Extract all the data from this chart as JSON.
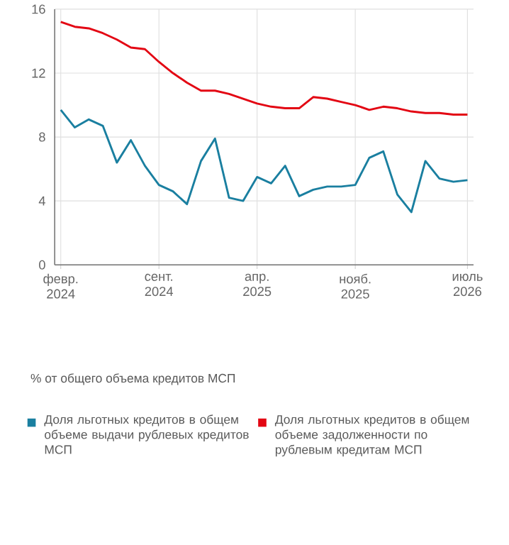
{
  "chart_data": {
    "type": "line",
    "x": [
      "2024-02",
      "2024-03",
      "2024-04",
      "2024-05",
      "2024-06",
      "2024-07",
      "2024-08",
      "2024-09",
      "2024-10",
      "2024-11",
      "2024-12",
      "2025-01",
      "2025-02",
      "2025-03",
      "2025-04",
      "2025-05",
      "2025-06",
      "2025-07",
      "2025-08",
      "2025-09",
      "2025-10",
      "2025-11",
      "2025-12",
      "2026-01",
      "2026-02",
      "2026-03",
      "2026-04",
      "2026-05",
      "2026-06",
      "2026-07"
    ],
    "series": [
      {
        "name": "Доля льготных кредитов в общем объеме выдачи рублевых кредитов МСП",
        "color": "#1a7fa0",
        "values": [
          9.7,
          8.6,
          9.1,
          8.7,
          6.4,
          7.8,
          6.2,
          5.0,
          4.6,
          3.8,
          6.5,
          7.9,
          4.2,
          4.0,
          5.5,
          5.1,
          6.2,
          4.3,
          4.7,
          4.9,
          4.9,
          5.0,
          6.7,
          7.1,
          4.4,
          3.3,
          6.5,
          5.4,
          5.2,
          5.3
        ]
      },
      {
        "name": "Доля льготных кредитов в общем объеме задолженности по рублевым кредитам МСП",
        "color": "#e30613",
        "values": [
          15.2,
          14.9,
          14.8,
          14.5,
          14.1,
          13.6,
          13.5,
          12.7,
          12.0,
          11.4,
          10.9,
          10.9,
          10.7,
          10.4,
          10.1,
          9.9,
          9.8,
          9.8,
          10.5,
          10.4,
          10.2,
          10.0,
          9.7,
          9.9,
          9.8,
          9.6,
          9.5,
          9.5,
          9.4,
          9.4
        ]
      }
    ],
    "xlim": [
      "2024-01-18",
      "2026-07-14"
    ],
    "xticks": [
      {
        "value": "2024-02",
        "label": "февр. 2024"
      },
      {
        "value": "2024-09",
        "label": "сент. 2024"
      },
      {
        "value": "2025-04",
        "label": "апр. 2025"
      },
      {
        "value": "2025-11",
        "label": "нояб. 2025"
      },
      {
        "value": "2026-07",
        "label": "июль 2026"
      }
    ],
    "ylim": [
      0,
      16
    ],
    "yticks": [
      0,
      4,
      8,
      12,
      16
    ],
    "grid": true,
    "legend": "bottom",
    "marker": "none",
    "line_style": "solid",
    "annotations": [
      "% от общего объема кредитов МСП"
    ]
  }
}
